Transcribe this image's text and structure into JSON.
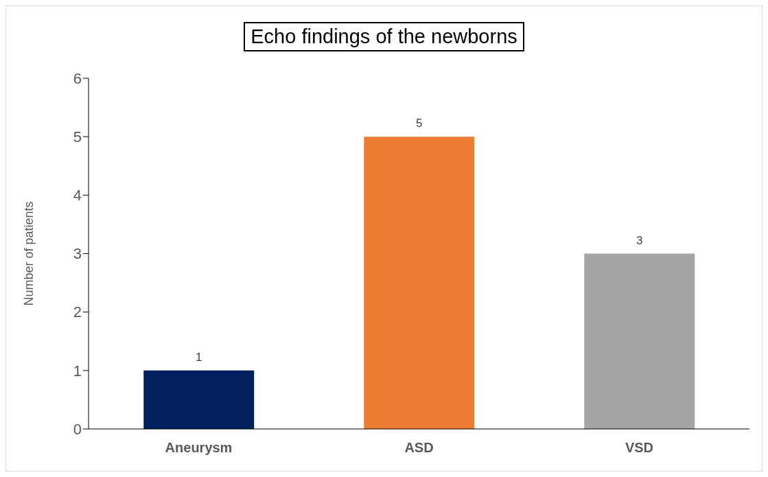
{
  "chart_data": {
    "type": "bar",
    "title": "Echo findings of the newborns",
    "ylabel": "Number of patients",
    "categories": [
      "Aneurysm",
      "ASD",
      "VSD"
    ],
    "values": [
      1,
      5,
      3
    ],
    "colors": [
      "#002060",
      "#ed7d31",
      "#a5a5a5"
    ],
    "ylim": [
      0,
      6
    ],
    "yticks": [
      0,
      1,
      2,
      3,
      4,
      5,
      6
    ],
    "grid": false,
    "data_labels": true
  }
}
